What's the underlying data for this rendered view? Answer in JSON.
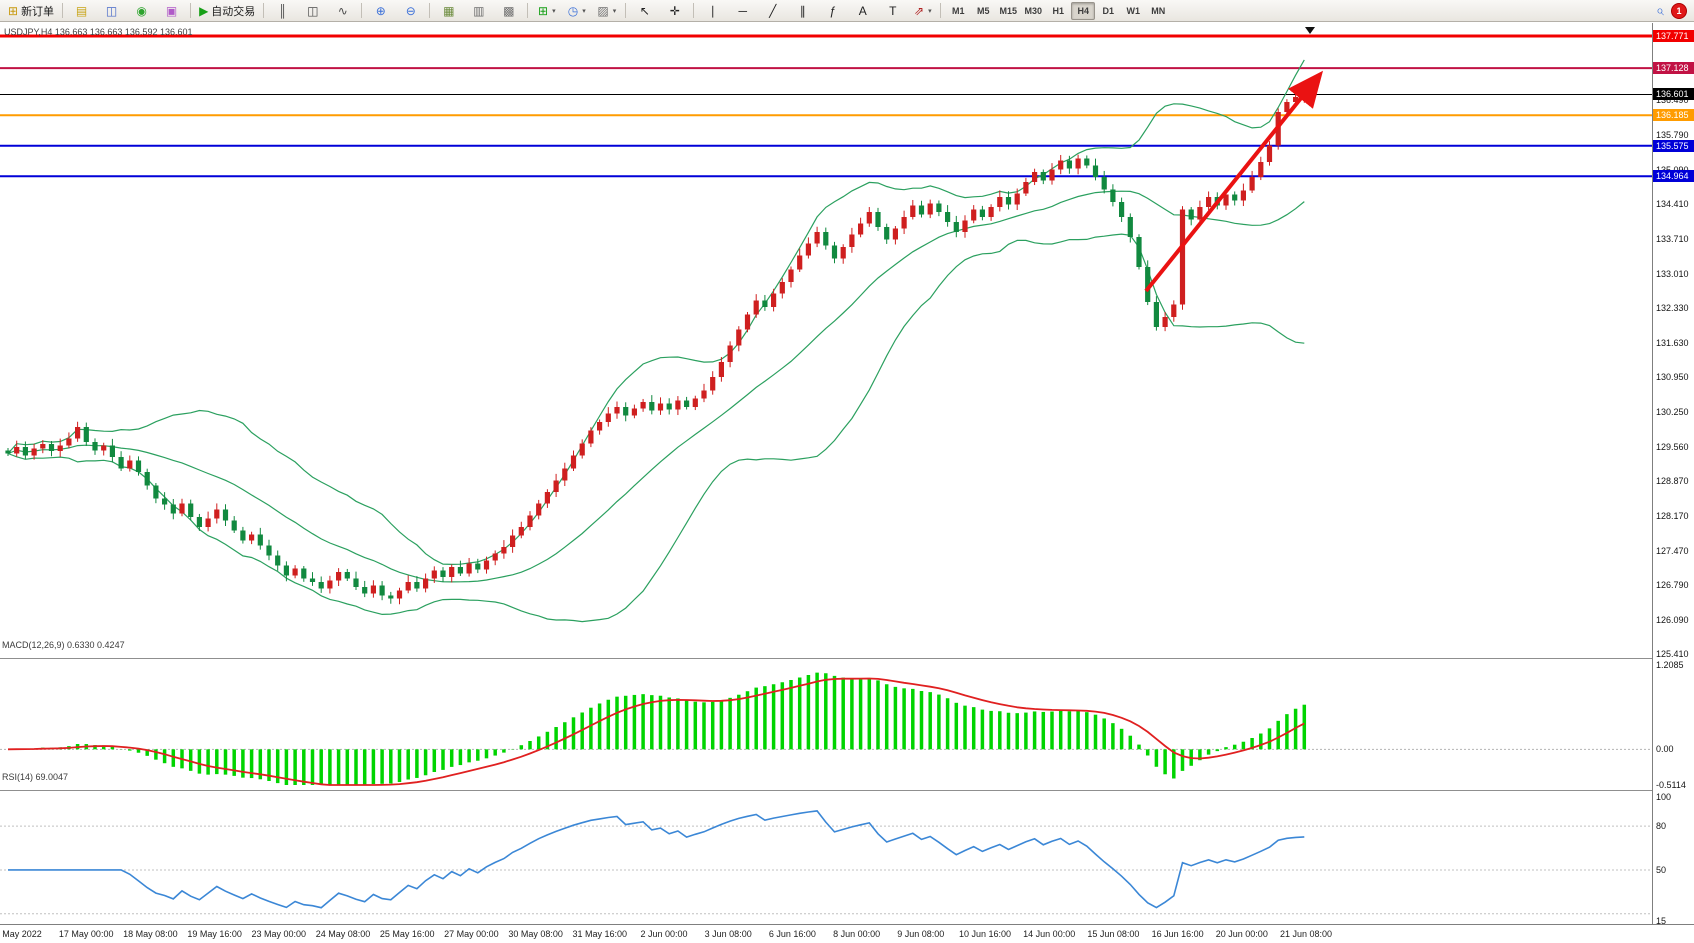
{
  "toolbar": {
    "groups": [
      {
        "items": [
          {
            "name": "new-order-button",
            "icon": "new-order-icon",
            "glyph": "⊞",
            "color": "#c89a10",
            "label": "新订单"
          }
        ]
      },
      {
        "items": [
          {
            "name": "market-watch-button",
            "icon": "market-watch-icon",
            "glyph": "▤",
            "color": "#c8a415"
          },
          {
            "name": "data-window-button",
            "icon": "data-window-icon",
            "glyph": "◫",
            "color": "#4668c8"
          },
          {
            "name": "navigator-button",
            "icon": "navigator-icon",
            "glyph": "◉",
            "color": "#2da32d"
          },
          {
            "name": "terminal-button",
            "icon": "terminal-icon",
            "glyph": "▣",
            "color": "#b05ac8"
          }
        ]
      },
      {
        "items": [
          {
            "name": "auto-trading-button",
            "icon": "auto-trading-icon",
            "glyph": "▶",
            "color": "#18a018",
            "label": "自动交易"
          }
        ]
      },
      {
        "items": [
          {
            "name": "bar-chart-button",
            "icon": "bar-chart-icon",
            "glyph": "║",
            "color": "#4a4a4a"
          },
          {
            "name": "candlestick-chart-button",
            "icon": "candlestick-chart-icon",
            "glyph": "◫",
            "color": "#4a4a4a"
          },
          {
            "name": "line-chart-button",
            "icon": "line-chart-icon",
            "glyph": "∿",
            "color": "#4a4a4a"
          }
        ]
      },
      {
        "items": [
          {
            "name": "zoom-in-button",
            "icon": "zoom-in-icon",
            "glyph": "⊕",
            "color": "#3a6fd8"
          },
          {
            "name": "zoom-out-button",
            "icon": "zoom-out-icon",
            "glyph": "⊖",
            "color": "#3a6fd8"
          }
        ]
      },
      {
        "items": [
          {
            "name": "tile-windows-button",
            "icon": "tile-windows-icon",
            "glyph": "▦",
            "color": "#6a8a3a"
          },
          {
            "name": "arrange-windows-button",
            "icon": "arrange-windows-icon",
            "glyph": "▥",
            "color": "#707070"
          },
          {
            "name": "cascade-windows-button",
            "icon": "cascade-windows-icon",
            "glyph": "▩",
            "color": "#707070"
          }
        ]
      },
      {
        "items": [
          {
            "name": "new-chart-button",
            "icon": "new-chart-icon",
            "glyph": "⊞",
            "color": "#18a018",
            "dropdown": true
          },
          {
            "name": "periods-button",
            "icon": "periods-icon",
            "glyph": "◷",
            "color": "#3a6fd8",
            "dropdown": true
          },
          {
            "name": "indicators-button",
            "icon": "indicators-icon",
            "glyph": "▨",
            "color": "#707070",
            "dropdown": true
          }
        ]
      },
      {
        "items": [
          {
            "name": "cursor-button",
            "icon": "cursor-icon",
            "glyph": "↖",
            "color": "#222222"
          },
          {
            "name": "crosshair-button",
            "icon": "crosshair-icon",
            "glyph": "✛",
            "color": "#222222"
          }
        ]
      },
      {
        "items": [
          {
            "name": "vertical-line-button",
            "icon": "vertical-line-icon",
            "glyph": "∣",
            "color": "#222222"
          },
          {
            "name": "horizontal-line-button",
            "icon": "horizontal-line-icon",
            "glyph": "─",
            "color": "#222222"
          },
          {
            "name": "trendline-button",
            "icon": "trendline-icon",
            "glyph": "╱",
            "color": "#222222"
          },
          {
            "name": "channel-button",
            "icon": "channel-icon",
            "glyph": "∥",
            "color": "#222222"
          },
          {
            "name": "fibonacci-button",
            "icon": "fibonacci-icon",
            "glyph": "ƒ",
            "color": "#222222"
          },
          {
            "name": "text-button",
            "icon": "text-icon",
            "glyph": "A",
            "color": "#222222"
          },
          {
            "name": "text-label-button",
            "icon": "text-label-icon",
            "glyph": "T",
            "color": "#222222"
          },
          {
            "name": "shapes-button",
            "icon": "arrows-shapes-icon",
            "glyph": "⇗",
            "color": "#b02020",
            "dropdown": true
          }
        ]
      }
    ],
    "timeframes": [
      "M1",
      "M5",
      "M15",
      "M30",
      "H1",
      "H4",
      "D1",
      "W1",
      "MN"
    ],
    "active_timeframe": "H4",
    "search_glyph": "⌕",
    "badge": "1"
  },
  "chart": {
    "symbol_label": "USDJPY,H4  136.663 136.663 136.592 136.601",
    "price_axis": {
      "labels": [
        "136.490",
        "135.790",
        "135.090",
        "134.410",
        "133.710",
        "133.010",
        "132.330",
        "131.630",
        "130.950",
        "130.250",
        "129.560",
        "128.870",
        "128.170",
        "127.470",
        "126.790",
        "126.090",
        "125.410"
      ]
    },
    "level_lines": [
      {
        "price": 137.771,
        "label": "137.771",
        "color": "#f20000",
        "width": 3
      },
      {
        "price": 137.128,
        "label": "137.128",
        "color": "#c11244",
        "width": 2
      },
      {
        "price": 136.601,
        "label": "136.601",
        "color": "#000000",
        "width": 1
      },
      {
        "price": 136.185,
        "label": "136.185",
        "color": "#ff9c00",
        "width": 2
      },
      {
        "price": 135.575,
        "label": "135.575",
        "color": "#0000d8",
        "width": 2
      },
      {
        "price": 134.964,
        "label": "134.964",
        "color": "#0000d8",
        "width": 2
      }
    ]
  },
  "chart_data": {
    "type": "candlestick",
    "symbol": "USDJPY",
    "timeframe": "H4",
    "price_axis_range": [
      125.41,
      137.98
    ],
    "closes": [
      129.42,
      129.55,
      129.38,
      129.52,
      129.61,
      129.47,
      129.58,
      129.72,
      129.95,
      129.65,
      129.48,
      129.58,
      129.35,
      129.12,
      129.28,
      129.05,
      128.78,
      128.52,
      128.4,
      128.22,
      128.42,
      128.15,
      127.95,
      128.12,
      128.3,
      128.08,
      127.88,
      127.68,
      127.8,
      127.58,
      127.38,
      127.18,
      126.98,
      127.12,
      126.92,
      126.85,
      126.72,
      126.88,
      127.05,
      126.92,
      126.75,
      126.62,
      126.78,
      126.58,
      126.52,
      126.68,
      126.85,
      126.72,
      126.92,
      127.08,
      126.95,
      127.15,
      127.02,
      127.22,
      127.1,
      127.28,
      127.42,
      127.55,
      127.78,
      127.95,
      128.18,
      128.42,
      128.65,
      128.88,
      129.12,
      129.38,
      129.62,
      129.88,
      130.05,
      130.22,
      130.35,
      130.18,
      130.32,
      130.45,
      130.28,
      130.42,
      130.3,
      130.48,
      130.35,
      130.52,
      130.68,
      130.95,
      131.25,
      131.58,
      131.9,
      132.2,
      132.48,
      132.35,
      132.62,
      132.85,
      133.1,
      133.38,
      133.62,
      133.85,
      133.58,
      133.32,
      133.55,
      133.8,
      134.02,
      134.25,
      133.95,
      133.7,
      133.92,
      134.15,
      134.38,
      134.2,
      134.42,
      134.25,
      134.05,
      133.85,
      134.08,
      134.3,
      134.15,
      134.35,
      134.55,
      134.4,
      134.62,
      134.85,
      135.05,
      134.88,
      135.1,
      135.28,
      135.12,
      135.32,
      135.18,
      134.95,
      134.7,
      134.45,
      134.15,
      133.75,
      133.15,
      132.45,
      131.95,
      132.15,
      132.4,
      134.3,
      134.1,
      134.35,
      134.55,
      134.38,
      134.6,
      134.48,
      134.68,
      134.95,
      135.25,
      135.58,
      136.25,
      136.45,
      136.55,
      136.6
    ],
    "bollinger": {
      "period": 20,
      "deviation": 2
    },
    "macd": {
      "label": "MACD(12,26,9) 0.6330 0.4247",
      "fast": 12,
      "slow": 26,
      "signal": 9,
      "scale_max": "1.2085",
      "scale_zero": "0.00",
      "scale_min": "-0.5114"
    },
    "rsi": {
      "label": "RSI(14) 69.0047",
      "period": 14,
      "scale": [
        "100",
        "80",
        "50",
        "15"
      ]
    },
    "time_labels": [
      "May 2022",
      "17 May 00:00",
      "18 May 08:00",
      "19 May 16:00",
      "23 May 00:00",
      "24 May 08:00",
      "25 May 16:00",
      "27 May 00:00",
      "30 May 08:00",
      "31 May 16:00",
      "2 Jun 00:00",
      "3 Jun 08:00",
      "6 Jun 16:00",
      "8 Jun 00:00",
      "9 Jun 08:00",
      "10 Jun 16:00",
      "14 Jun 00:00",
      "15 Jun 08:00",
      "16 Jun 16:00",
      "20 Jun 00:00",
      "21 Jun 08:00"
    ]
  },
  "colors": {
    "bull": "#cf1f1f",
    "bear": "#11893f",
    "bollinger": "#2ba05f",
    "macd_hist": "#00d400",
    "macd_signal": "#e02020",
    "rsi": "#3b87d6",
    "arrow": "#ea1212"
  }
}
